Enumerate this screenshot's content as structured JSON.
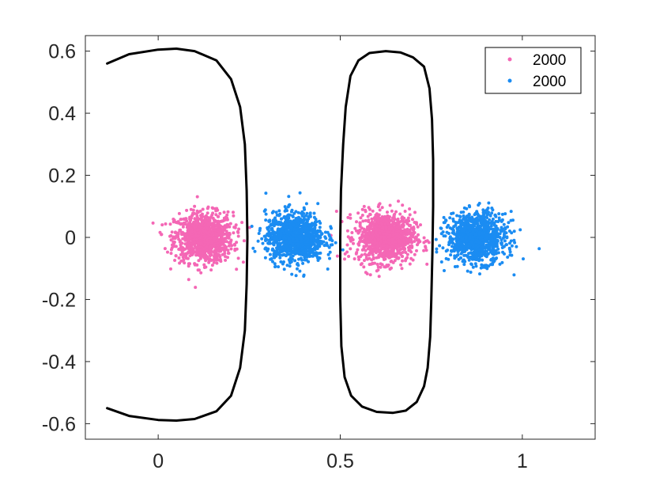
{
  "chart_data": {
    "type": "scatter",
    "title": "",
    "xlabel": "",
    "ylabel": "",
    "xlim": [
      -0.2,
      1.2
    ],
    "ylim": [
      -0.65,
      0.65
    ],
    "xticks": [
      0,
      0.5,
      1
    ],
    "xtick_labels": [
      "0",
      "0.5",
      "1"
    ],
    "yticks": [
      -0.6,
      -0.4,
      -0.2,
      0,
      0.2,
      0.4,
      0.6
    ],
    "ytick_labels": [
      "-0.6",
      "-0.4",
      "-0.2",
      "0",
      "0.2",
      "0.4",
      "0.6"
    ],
    "grid": false,
    "legend_position": "top-right",
    "series": [
      {
        "name": "2000",
        "color": "#f467b5",
        "count": 2000,
        "clusters": [
          {
            "center": [
              0.125,
              0.0
            ],
            "spread": [
              0.04,
              0.04
            ]
          },
          {
            "center": [
              0.625,
              0.0
            ],
            "spread": [
              0.04,
              0.04
            ]
          }
        ]
      },
      {
        "name": "2000",
        "color": "#1b8cf2",
        "count": 2000,
        "clusters": [
          {
            "center": [
              0.375,
              0.0
            ],
            "spread": [
              0.04,
              0.04
            ]
          },
          {
            "center": [
              0.875,
              0.0
            ],
            "spread": [
              0.04,
              0.04
            ]
          }
        ]
      }
    ],
    "boundary_curves": [
      {
        "color": "#000000",
        "points": [
          [
            -0.14,
            0.56
          ],
          [
            -0.08,
            0.59
          ],
          [
            0.0,
            0.605
          ],
          [
            0.05,
            0.608
          ],
          [
            0.1,
            0.6
          ],
          [
            0.16,
            0.57
          ],
          [
            0.2,
            0.51
          ],
          [
            0.225,
            0.42
          ],
          [
            0.238,
            0.3
          ],
          [
            0.243,
            0.15
          ],
          [
            0.245,
            0.0
          ],
          [
            0.243,
            -0.15
          ],
          [
            0.238,
            -0.3
          ],
          [
            0.225,
            -0.42
          ],
          [
            0.2,
            -0.51
          ],
          [
            0.16,
            -0.56
          ],
          [
            0.1,
            -0.585
          ],
          [
            0.05,
            -0.59
          ],
          [
            0.0,
            -0.588
          ],
          [
            -0.08,
            -0.575
          ],
          [
            -0.14,
            -0.55
          ]
        ]
      },
      {
        "color": "#000000",
        "points": [
          [
            0.625,
            0.6
          ],
          [
            0.665,
            0.596
          ],
          [
            0.7,
            0.58
          ],
          [
            0.73,
            0.55
          ],
          [
            0.745,
            0.48
          ],
          [
            0.752,
            0.38
          ],
          [
            0.755,
            0.25
          ],
          [
            0.755,
            0.1
          ],
          [
            0.753,
            -0.05
          ],
          [
            0.75,
            -0.2
          ],
          [
            0.747,
            -0.32
          ],
          [
            0.74,
            -0.42
          ],
          [
            0.73,
            -0.48
          ],
          [
            0.71,
            -0.53
          ],
          [
            0.68,
            -0.558
          ],
          [
            0.645,
            -0.565
          ],
          [
            0.6,
            -0.562
          ],
          [
            0.56,
            -0.545
          ],
          [
            0.53,
            -0.51
          ],
          [
            0.512,
            -0.45
          ],
          [
            0.503,
            -0.35
          ],
          [
            0.5,
            -0.2
          ],
          [
            0.5,
            0.0
          ],
          [
            0.502,
            0.15
          ],
          [
            0.508,
            0.3
          ],
          [
            0.515,
            0.42
          ],
          [
            0.528,
            0.52
          ],
          [
            0.55,
            0.57
          ],
          [
            0.58,
            0.594
          ],
          [
            0.625,
            0.6
          ]
        ]
      }
    ]
  }
}
